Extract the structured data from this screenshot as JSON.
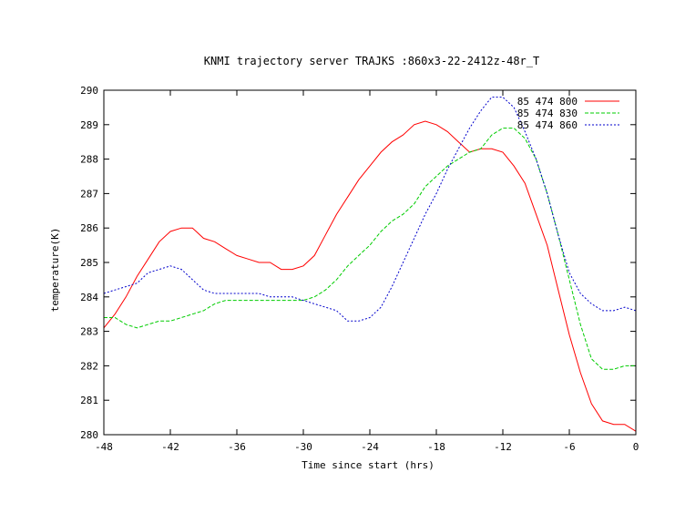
{
  "chart_data": {
    "type": "line",
    "title": "KNMI trajectory server TRAJKS :860x3-22-2412z-48r_T",
    "xlabel": "Time since start (hrs)",
    "ylabel": "temperature(K)",
    "xlim": [
      -48,
      0
    ],
    "ylim": [
      280,
      290
    ],
    "xticks": [
      -48,
      -42,
      -36,
      -30,
      -24,
      -18,
      -12,
      -6,
      0
    ],
    "yticks": [
      280,
      281,
      282,
      283,
      284,
      285,
      286,
      287,
      288,
      289,
      290
    ],
    "grid": false,
    "legend_position": "top-right",
    "x": [
      -48,
      -47,
      -46,
      -45,
      -44,
      -43,
      -42,
      -41,
      -40,
      -39,
      -38,
      -37,
      -36,
      -35,
      -34,
      -33,
      -32,
      -31,
      -30,
      -29,
      -28,
      -27,
      -26,
      -25,
      -24,
      -23,
      -22,
      -21,
      -20,
      -19,
      -18,
      -17,
      -16,
      -15,
      -14,
      -13,
      -12,
      -11,
      -10,
      -9,
      -8,
      -7,
      -6,
      -5,
      -4,
      -3,
      -2,
      -1,
      0
    ],
    "series": [
      {
        "name": "85 474 800",
        "color": "#ff0000",
        "dash": "solid",
        "values": [
          283.1,
          283.5,
          284.0,
          284.6,
          285.1,
          285.6,
          285.9,
          286.0,
          286.0,
          285.7,
          285.6,
          285.4,
          285.2,
          285.1,
          285.0,
          285.0,
          284.8,
          284.8,
          284.9,
          285.2,
          285.8,
          286.4,
          286.9,
          287.4,
          287.8,
          288.2,
          288.5,
          288.7,
          289.0,
          289.1,
          289.0,
          288.8,
          288.5,
          288.2,
          288.3,
          288.3,
          288.2,
          287.8,
          287.3,
          286.4,
          285.5,
          284.2,
          282.9,
          281.8,
          280.9,
          280.4,
          280.3,
          280.3,
          280.1
        ]
      },
      {
        "name": "85 474 830",
        "color": "#00cc00",
        "dash": "long",
        "values": [
          283.4,
          283.4,
          283.2,
          283.1,
          283.2,
          283.3,
          283.3,
          283.4,
          283.5,
          283.6,
          283.8,
          283.9,
          283.9,
          283.9,
          283.9,
          283.9,
          283.9,
          283.9,
          283.9,
          284.0,
          284.2,
          284.5,
          284.9,
          285.2,
          285.5,
          285.9,
          286.2,
          286.4,
          286.7,
          287.2,
          287.5,
          287.8,
          288.0,
          288.2,
          288.3,
          288.7,
          288.9,
          288.9,
          288.6,
          288.0,
          287.0,
          285.8,
          284.5,
          283.2,
          282.2,
          281.9,
          281.9,
          282.0,
          282.0
        ]
      },
      {
        "name": "85 474 860",
        "color": "#0000cc",
        "dash": "short",
        "values": [
          284.1,
          284.2,
          284.3,
          284.4,
          284.7,
          284.8,
          284.9,
          284.8,
          284.5,
          284.2,
          284.1,
          284.1,
          284.1,
          284.1,
          284.1,
          284.0,
          284.0,
          284.0,
          283.9,
          283.8,
          283.7,
          283.6,
          283.3,
          283.3,
          283.4,
          283.7,
          284.3,
          285.0,
          285.7,
          286.4,
          287.0,
          287.7,
          288.3,
          288.9,
          289.4,
          289.8,
          289.8,
          289.5,
          288.8,
          288.0,
          287.0,
          285.8,
          284.7,
          284.1,
          283.8,
          283.6,
          283.6,
          283.7,
          283.6
        ]
      }
    ]
  }
}
